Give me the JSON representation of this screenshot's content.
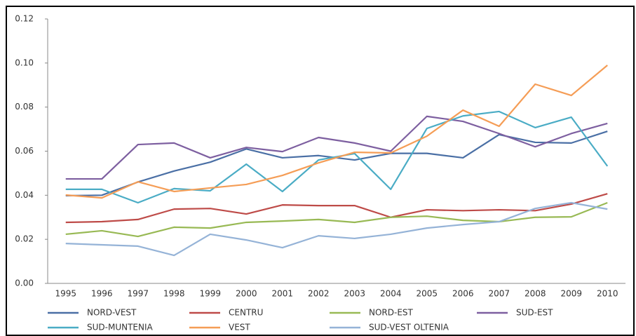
{
  "chart_data": {
    "type": "line",
    "categories": [
      "1995",
      "1996",
      "1997",
      "1998",
      "1999",
      "2000",
      "2001",
      "2002",
      "2003",
      "2004",
      "2005",
      "2006",
      "2007",
      "2008",
      "2009",
      "2010"
    ],
    "series": [
      {
        "name": "NORD-VEST",
        "color": "#4a6fa5",
        "values": [
          0.0398,
          0.04,
          0.046,
          0.051,
          0.055,
          0.061,
          0.057,
          0.058,
          0.056,
          0.059,
          0.059,
          0.057,
          0.0675,
          0.064,
          0.0637,
          0.069
        ]
      },
      {
        "name": "CENTRU",
        "color": "#be4b48",
        "values": [
          0.0277,
          0.028,
          0.029,
          0.0337,
          0.034,
          0.0315,
          0.0356,
          0.0353,
          0.0353,
          0.03,
          0.0334,
          0.033,
          0.0334,
          0.033,
          0.036,
          0.0407
        ]
      },
      {
        "name": "NORD-EST",
        "color": "#98b954",
        "values": [
          0.0223,
          0.0239,
          0.0213,
          0.0255,
          0.0251,
          0.0277,
          0.0283,
          0.029,
          0.0277,
          0.03,
          0.0305,
          0.0286,
          0.028,
          0.03,
          0.0302,
          0.0366
        ]
      },
      {
        "name": "SUD-EST",
        "color": "#7d5fa0",
        "values": [
          0.0474,
          0.0474,
          0.063,
          0.0637,
          0.057,
          0.0617,
          0.0598,
          0.0662,
          0.0637,
          0.06,
          0.0758,
          0.0735,
          0.068,
          0.062,
          0.068,
          0.0726
        ]
      },
      {
        "name": "SUD-MUNTENIA",
        "color": "#4aacc5",
        "values": [
          0.0427,
          0.0427,
          0.0366,
          0.043,
          0.042,
          0.0541,
          0.0417,
          0.056,
          0.0589,
          0.0427,
          0.0703,
          0.076,
          0.078,
          0.0707,
          0.0754,
          0.0532
        ]
      },
      {
        "name": "VEST",
        "color": "#f59d56",
        "values": [
          0.0401,
          0.0388,
          0.0461,
          0.0417,
          0.0433,
          0.0449,
          0.049,
          0.0547,
          0.0595,
          0.0592,
          0.0668,
          0.0786,
          0.0713,
          0.0904,
          0.0853,
          0.099
        ]
      },
      {
        "name": "SUD-VEST OLTENIA",
        "color": "#95b3d7",
        "values": [
          0.0181,
          0.0175,
          0.0169,
          0.0127,
          0.0223,
          0.0197,
          0.0162,
          0.0216,
          0.0204,
          0.0223,
          0.0251,
          0.0267,
          0.028,
          0.034,
          0.0366,
          0.0337
        ]
      }
    ],
    "ylim": [
      0,
      0.12
    ],
    "yticks": [
      {
        "value": 0,
        "label": "0.00"
      },
      {
        "value": 0.02,
        "label": "0.02"
      },
      {
        "value": 0.04,
        "label": "0.04"
      },
      {
        "value": 0.06,
        "label": "0.06"
      },
      {
        "value": 0.08,
        "label": "0.08"
      },
      {
        "value": 0.1,
        "label": "0.10"
      },
      {
        "value": 0.12,
        "label": "0.12"
      }
    ],
    "grid": false
  }
}
